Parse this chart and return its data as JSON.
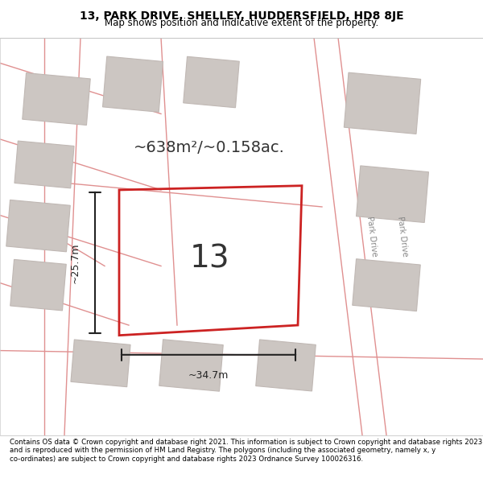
{
  "title_line1": "13, PARK DRIVE, SHELLEY, HUDDERSFIELD, HD8 8JE",
  "title_line2": "Map shows position and indicative extent of the property.",
  "footer_text": "Contains OS data © Crown copyright and database right 2021. This information is subject to Crown copyright and database rights 2023 and is reproduced with the permission of HM Land Registry. The polygons (including the associated geometry, namely x, y co-ordinates) are subject to Crown copyright and database rights 2023 Ordnance Survey 100026316.",
  "area_text": "~638m²/~0.158ac.",
  "property_number": "13",
  "dim_width": "~34.7m",
  "dim_height": "~25.7m",
  "road_label1": "Park Drive",
  "road_label2": "Park Drive",
  "bg_color": "#f5f0f0",
  "map_bg": "#f0ebe8",
  "plot_color": "#cc2222",
  "building_fill": "#d8d0cc",
  "road_color": "#e8c0c0",
  "title_bg": "#ffffff",
  "footer_bg": "#ffffff"
}
